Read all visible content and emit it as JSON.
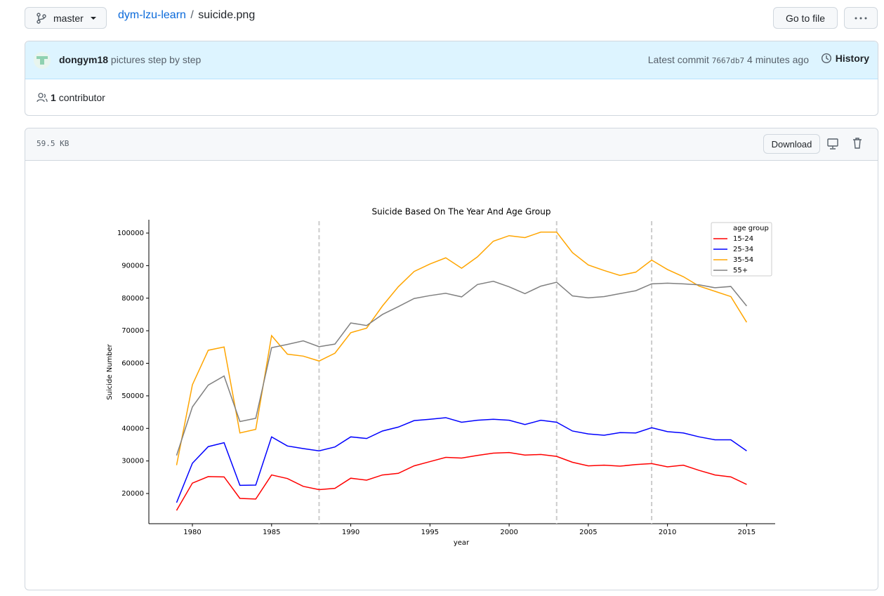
{
  "header": {
    "branch": "master",
    "repo": "dym-lzu-learn",
    "separator": "/",
    "file": "suicide.png",
    "go_to_file": "Go to file"
  },
  "commit": {
    "author": "dongym18",
    "message": "pictures step by step",
    "latest_label": "Latest commit",
    "hash": "7667db7",
    "time": "4 minutes ago",
    "history": "History"
  },
  "contributors": {
    "count": "1",
    "label": "contributor"
  },
  "file": {
    "size": "59.5 KB",
    "download": "Download"
  },
  "chart_data": {
    "type": "line",
    "title": "Suicide Based On The Year And Age Group",
    "x_label": "year",
    "y_label": "Suicide Number",
    "x": [
      1979,
      1980,
      1981,
      1982,
      1983,
      1984,
      1985,
      1986,
      1987,
      1988,
      1989,
      1990,
      1991,
      1992,
      1993,
      1994,
      1995,
      1996,
      1997,
      1998,
      1999,
      2000,
      2001,
      2002,
      2003,
      2004,
      2005,
      2006,
      2007,
      2008,
      2009,
      2010,
      2011,
      2012,
      2013,
      2014,
      2015
    ],
    "series": [
      {
        "name": "15-24",
        "color": "#ff0000",
        "values": [
          14800,
          23200,
          25200,
          25100,
          18500,
          18300,
          25700,
          24600,
          22200,
          21200,
          21600,
          24700,
          24100,
          25700,
          26200,
          28500,
          29800,
          31100,
          30900,
          31700,
          32400,
          32600,
          31800,
          32000,
          31400,
          29600,
          28500,
          28700,
          28400,
          28900,
          29200,
          28200,
          28700,
          27100,
          25700,
          25100,
          22800
        ]
      },
      {
        "name": "25-34",
        "color": "#0000ff",
        "values": [
          17200,
          29300,
          34400,
          35600,
          22500,
          22600,
          37400,
          34600,
          33800,
          33100,
          34300,
          37400,
          36900,
          39200,
          40400,
          42400,
          42800,
          43300,
          41900,
          42500,
          42800,
          42500,
          41200,
          42500,
          41900,
          39200,
          38300,
          37900,
          38700,
          38600,
          40200,
          39000,
          38600,
          37400,
          36500,
          36500,
          33100
        ]
      },
      {
        "name": "35-54",
        "color": "#ffa500",
        "values": [
          28700,
          53400,
          64000,
          65000,
          38600,
          39700,
          68500,
          62800,
          62200,
          60700,
          63100,
          69400,
          70800,
          77600,
          83500,
          88200,
          90500,
          92400,
          89200,
          92700,
          97500,
          99200,
          98600,
          100300,
          100300,
          94000,
          90200,
          88500,
          87000,
          88000,
          91700,
          88800,
          86600,
          83700,
          82100,
          80500,
          72600
        ]
      },
      {
        "name": "55+",
        "color": "#808080",
        "values": [
          31700,
          46600,
          53300,
          56100,
          42100,
          43100,
          64800,
          65800,
          66900,
          65100,
          65900,
          72400,
          71600,
          75000,
          77400,
          79900,
          80800,
          81500,
          80400,
          84200,
          85200,
          83500,
          81400,
          83700,
          84900,
          80700,
          80100,
          80500,
          81400,
          82300,
          84400,
          84600,
          84400,
          84100,
          83200,
          83600,
          77600
        ]
      }
    ],
    "legend_title": "age group",
    "legend": "upper right",
    "vlines": [
      1988,
      2003,
      2009
    ],
    "vline_color": "#cccccc",
    "xlim": [
      1977.25,
      2016.8
    ],
    "xticks": [
      1980,
      1985,
      1990,
      1995,
      2000,
      2005,
      2010,
      2015
    ],
    "ylim": [
      10730,
      104100
    ],
    "yticks": [
      20000,
      30000,
      40000,
      50000,
      60000,
      70000,
      80000,
      90000,
      100000
    ],
    "grid": false
  }
}
